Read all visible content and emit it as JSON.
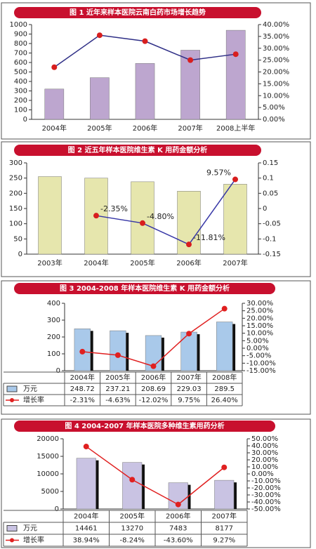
{
  "chart_data": [
    {
      "type": "combo",
      "title": "图 1 近年来样本医院云南白药市场增长趋势",
      "categories": [
        "2004年",
        "2005年",
        "2006年",
        "2007年",
        "2008上半年"
      ],
      "series": [
        {
          "type": "bar",
          "color": "#bda6cf",
          "values": [
            320,
            440,
            590,
            730,
            940
          ]
        },
        {
          "type": "line",
          "axis": "y2",
          "color": "#2e2e86",
          "marker_color": "#d81e1e",
          "values": [
            22,
            35.5,
            33,
            25,
            27.5
          ]
        }
      ],
      "ylim": [
        0,
        1000
      ],
      "yticks": [
        0,
        100,
        200,
        300,
        400,
        500,
        600,
        700,
        800,
        900,
        1000
      ],
      "y2lim": [
        0,
        40
      ],
      "y2ticks": [
        {
          "value": 0,
          "label": "0.00%"
        },
        {
          "value": 5,
          "label": "5.00%"
        },
        {
          "value": 10,
          "label": "10.00%"
        },
        {
          "value": 15,
          "label": "15.00%"
        },
        {
          "value": 20,
          "label": "20.00%"
        },
        {
          "value": 25,
          "label": "25.00%"
        },
        {
          "value": 30,
          "label": "30.00%"
        },
        {
          "value": 35,
          "label": "35.00%"
        },
        {
          "value": 40,
          "label": "40.00%"
        }
      ]
    },
    {
      "type": "combo",
      "title": "图 2 近五年样本医院维生素 K 用药金额分析",
      "categories": [
        "2003年",
        "2004年",
        "2005年",
        "2006年",
        "2007年"
      ],
      "series": [
        {
          "type": "bar",
          "color": "#e6e6ad",
          "values": [
            255,
            250,
            238,
            207,
            230
          ]
        },
        {
          "type": "line",
          "axis": "y2",
          "color": "#3636a6",
          "marker_color": "#d81e1e",
          "values": [
            null,
            -0.0235,
            -0.048,
            -0.1181,
            0.0957
          ],
          "value_labels": [
            null,
            "-2.35%",
            "-4.80%",
            "-11.81%",
            "9.57%"
          ]
        }
      ],
      "ylim": [
        0,
        300
      ],
      "yticks": [
        0,
        50,
        100,
        150,
        200,
        250,
        300
      ],
      "y2lim": [
        -0.15,
        0.15
      ],
      "y2ticks": [
        -0.15,
        -0.1,
        -0.05,
        0,
        0.05,
        0.1,
        0.15
      ]
    },
    {
      "type": "combo",
      "title": "图 3 2004-2008 年样本医院维生素 K 用药金额分析",
      "categories": [
        "2004年",
        "2005年",
        "2006年",
        "2007年",
        "2008年"
      ],
      "series": [
        {
          "type": "bar",
          "name": "万元",
          "color": "#a9c9ea",
          "values": [
            248.72,
            237.21,
            208.69,
            229.03,
            289.5
          ]
        },
        {
          "type": "line",
          "name": "增长率",
          "axis": "y2",
          "color": "#e02020",
          "marker_color": "#e02020",
          "values": [
            -2.31,
            -4.63,
            -12.02,
            9.75,
            26.4
          ],
          "value_labels": [
            "-2.31%",
            "-4.63%",
            "-12.02%",
            "9.75%",
            "26.40%"
          ]
        }
      ],
      "ylim": [
        0,
        400
      ],
      "yticks": [
        0,
        100,
        200,
        300,
        400
      ],
      "y2lim": [
        -15,
        30
      ],
      "y2ticks": [
        {
          "value": -15,
          "label": "-15.00%"
        },
        {
          "value": -10,
          "label": "-10.00%"
        },
        {
          "value": -5,
          "label": "-5.00%"
        },
        {
          "value": 0,
          "label": "0.00%"
        },
        {
          "value": 5,
          "label": "5.00%"
        },
        {
          "value": 10,
          "label": "10.00%"
        },
        {
          "value": 15,
          "label": "15.00%"
        },
        {
          "value": 20,
          "label": "20.00%"
        },
        {
          "value": 25,
          "label": "25.00%"
        },
        {
          "value": 30,
          "label": "30.00%"
        }
      ]
    },
    {
      "type": "combo",
      "title": "图 4 2004-2007 年样本医院多种维生素用药分析",
      "categories": [
        "2004年",
        "2005年",
        "2006年",
        "2007年"
      ],
      "series": [
        {
          "type": "bar",
          "name": "万元",
          "color": "#c9c3e3",
          "values": [
            14461,
            13270,
            7483,
            8177
          ]
        },
        {
          "type": "line",
          "name": "增长率",
          "axis": "y2",
          "color": "#e02020",
          "marker_color": "#e02020",
          "values": [
            38.94,
            -8.24,
            -43.6,
            9.27
          ],
          "value_labels": [
            "38.94%",
            "-8.24%",
            "-43.60%",
            "9.27%"
          ]
        }
      ],
      "ylim": [
        0,
        20000
      ],
      "yticks": [
        0,
        5000,
        10000,
        15000,
        20000
      ],
      "y2lim": [
        -50,
        50
      ],
      "y2ticks": [
        {
          "value": -50,
          "label": "-50.00%"
        },
        {
          "value": -40,
          "label": "-40.00%"
        },
        {
          "value": -30,
          "label": "-30.00%"
        },
        {
          "value": -20,
          "label": "-20.00%"
        },
        {
          "value": -10,
          "label": "-10.00%"
        },
        {
          "value": 0,
          "label": "0.00%"
        },
        {
          "value": 10,
          "label": "10.00%"
        },
        {
          "value": 20,
          "label": "20.00%"
        },
        {
          "value": 30,
          "label": "30.00%"
        },
        {
          "value": 40,
          "label": "40.00%"
        },
        {
          "value": 50,
          "label": "50.00%"
        }
      ]
    }
  ]
}
